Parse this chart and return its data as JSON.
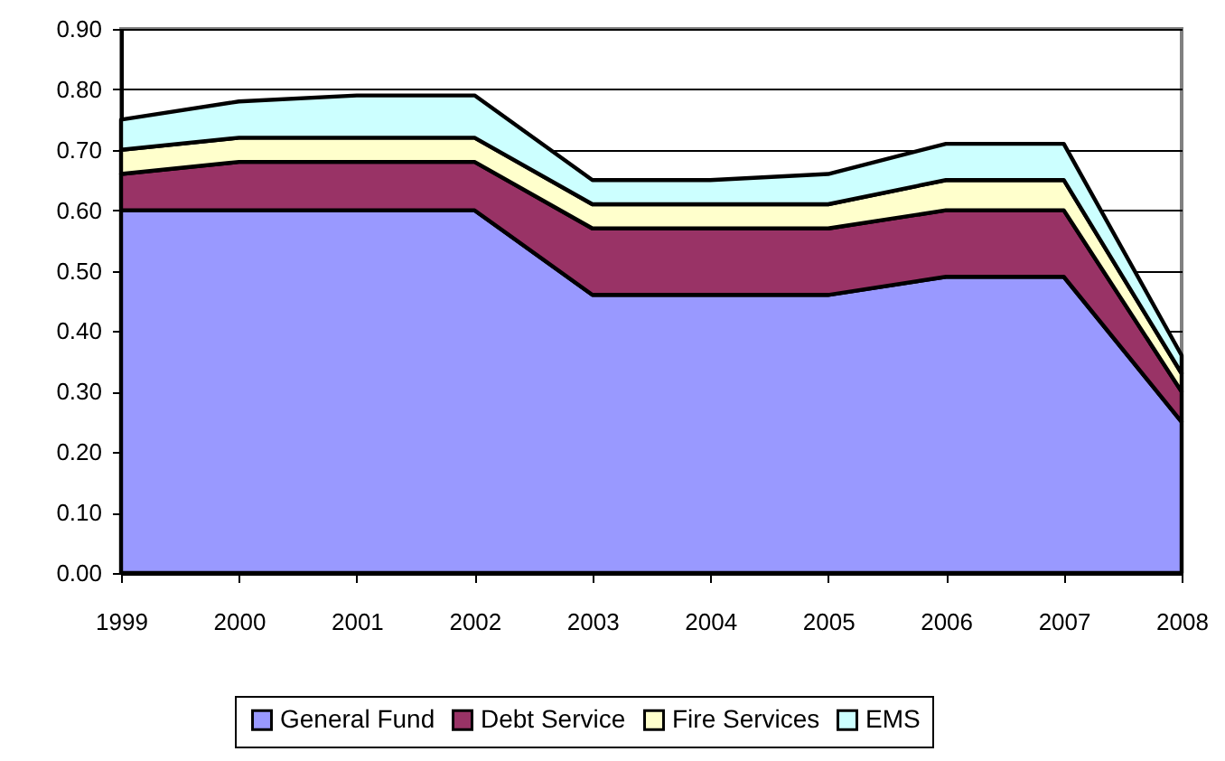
{
  "chart_data": {
    "type": "area",
    "stacked": true,
    "categories": [
      "1999",
      "2000",
      "2001",
      "2002",
      "2003",
      "2004",
      "2005",
      "2006",
      "2007",
      "2008"
    ],
    "series": [
      {
        "name": "General Fund",
        "color": "#9999ff",
        "values": [
          0.6,
          0.6,
          0.6,
          0.6,
          0.46,
          0.46,
          0.46,
          0.49,
          0.49,
          0.25
        ]
      },
      {
        "name": "Debt Service",
        "color": "#993366",
        "values": [
          0.06,
          0.08,
          0.08,
          0.08,
          0.11,
          0.11,
          0.11,
          0.11,
          0.11,
          0.05
        ]
      },
      {
        "name": "Fire Services",
        "color": "#ffffcc",
        "values": [
          0.04,
          0.04,
          0.04,
          0.04,
          0.04,
          0.04,
          0.04,
          0.05,
          0.05,
          0.03
        ]
      },
      {
        "name": "EMS",
        "color": "#ccffff",
        "values": [
          0.05,
          0.06,
          0.07,
          0.07,
          0.04,
          0.04,
          0.05,
          0.06,
          0.06,
          0.03
        ]
      }
    ],
    "ylim": [
      0,
      0.9
    ],
    "yticks": [
      {
        "value": 0,
        "label": "0.00"
      },
      {
        "value": 0.1,
        "label": "0.10"
      },
      {
        "value": 0.2,
        "label": "0.20"
      },
      {
        "value": 0.3,
        "label": "0.30"
      },
      {
        "value": 0.4,
        "label": "0.40"
      },
      {
        "value": 0.5,
        "label": "0.50"
      },
      {
        "value": 0.6,
        "label": "0.60"
      },
      {
        "value": 0.7,
        "label": "0.70"
      },
      {
        "value": 0.8,
        "label": "0.80"
      },
      {
        "value": 0.9,
        "label": "0.90"
      }
    ],
    "grid": "y",
    "legend": "bottom"
  }
}
